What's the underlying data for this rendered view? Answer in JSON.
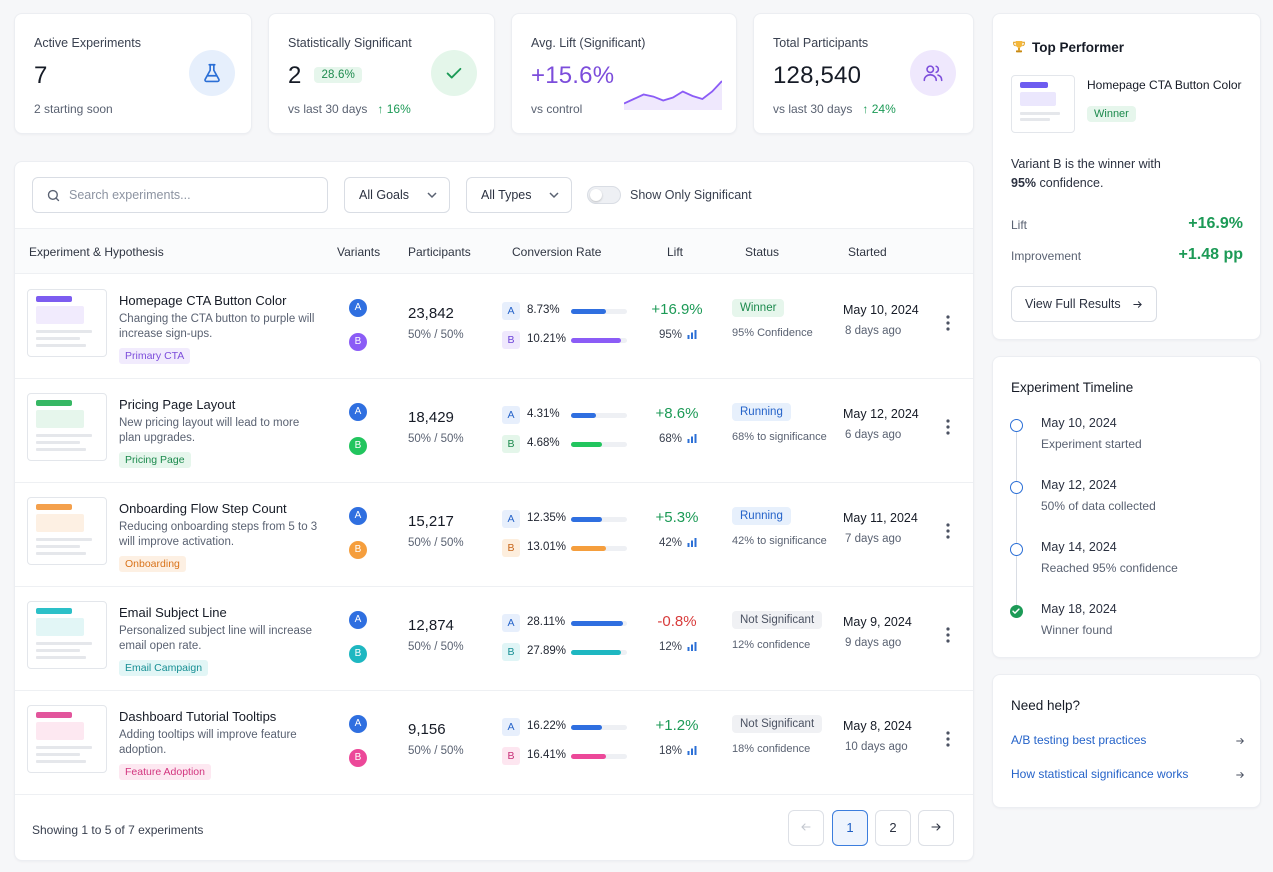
{
  "stats": [
    {
      "label": "Active Experiments",
      "value": "7",
      "sub": "2 starting soon",
      "icon": "flask-icon"
    },
    {
      "label": "Statistically Significant",
      "value": "2",
      "badge": "28.6%",
      "sub": "vs last 30 days",
      "trend": "16%",
      "icon": "check-icon"
    },
    {
      "label": "Avg. Lift (Significant)",
      "value": "+15.6%",
      "sub": "vs control",
      "sparkline": [
        0.15,
        0.3,
        0.45,
        0.38,
        0.25,
        0.35,
        0.55,
        0.4,
        0.3,
        0.55,
        0.9
      ]
    },
    {
      "label": "Total Participants",
      "value": "128,540",
      "sub": "vs last 30 days",
      "trend": "24%",
      "icon": "users-icon"
    }
  ],
  "filters": {
    "search_placeholder": "Search experiments...",
    "goals": "All Goals",
    "types": "All Types",
    "toggle_label": "Show Only Significant"
  },
  "table": {
    "headers": [
      "Experiment & Hypothesis",
      "Variants",
      "Participants",
      "Conversion Rate",
      "Lift",
      "Status",
      "Started"
    ],
    "rows": [
      {
        "name": "Homepage CTA Button Color",
        "hypothesis": "Changing the CTA button to purple will increase sign-ups.",
        "tag": "Primary CTA",
        "tag_color": "#7c4ddb",
        "tag_bg": "#f1ebfd",
        "participants": "23,842",
        "split": "50% / 50%",
        "a_rate": "8.73%",
        "b_rate": "10.21%",
        "a_fill": 0.62,
        "b_fill": 0.9,
        "b_color": "#8b5cf6",
        "b_chip_bg": "#efe8fd",
        "b_chip_fg": "#6d43d8",
        "lift": "+16.9%",
        "lift_color": "#1c9a56",
        "confidence": "95%",
        "status": "Winner",
        "status_fg": "#1c8a4d",
        "status_bg": "#e6f6ec",
        "status_note": "95% Confidence",
        "started": "May 10, 2024",
        "ago": "8 days ago",
        "accent": "#7c5cf0"
      },
      {
        "name": "Pricing Page Layout",
        "hypothesis": "New pricing layout will lead to more plan upgrades.",
        "tag": "Pricing Page",
        "tag_color": "#1c8a4d",
        "tag_bg": "#e6f6ec",
        "participants": "18,429",
        "split": "50% / 50%",
        "a_rate": "4.31%",
        "b_rate": "4.68%",
        "a_fill": 0.45,
        "b_fill": 0.55,
        "b_color": "#22c55e",
        "b_chip_bg": "#e4f6ea",
        "b_chip_fg": "#1c8a4d",
        "lift": "+8.6%",
        "lift_color": "#1c9a56",
        "confidence": "68%",
        "status": "Running",
        "status_fg": "#2563c9",
        "status_bg": "#e7f0fc",
        "status_note": "68% to significance",
        "started": "May 12, 2024",
        "ago": "6 days ago",
        "accent": "#37b764"
      },
      {
        "name": "Onboarding Flow Step Count",
        "hypothesis": "Reducing onboarding steps from 5 to 3 will improve activation.",
        "tag": "Onboarding",
        "tag_color": "#d9731a",
        "tag_bg": "#fdf0e3",
        "participants": "15,217",
        "split": "50% / 50%",
        "a_rate": "12.35%",
        "b_rate": "13.01%",
        "a_fill": 0.55,
        "b_fill": 0.62,
        "b_color": "#f59e3d",
        "b_chip_bg": "#fdeedd",
        "b_chip_fg": "#c8661a",
        "lift": "+5.3%",
        "lift_color": "#1c9a56",
        "confidence": "42%",
        "status": "Running",
        "status_fg": "#2563c9",
        "status_bg": "#e7f0fc",
        "status_note": "42% to significance",
        "started": "May 11, 2024",
        "ago": "7 days ago",
        "accent": "#f4a04c"
      },
      {
        "name": "Email Subject Line",
        "hypothesis": "Personalized subject line will increase email open rate.",
        "tag": "Email Campaign",
        "tag_color": "#178f94",
        "tag_bg": "#e2f6f6",
        "participants": "12,874",
        "split": "50% / 50%",
        "a_rate": "28.11%",
        "b_rate": "27.89%",
        "a_fill": 0.92,
        "b_fill": 0.9,
        "b_color": "#1eb7c1",
        "b_chip_bg": "#e0f5f6",
        "b_chip_fg": "#178f94",
        "lift": "-0.8%",
        "lift_color": "#d83b3b",
        "confidence": "12%",
        "status": "Not Significant",
        "status_fg": "#4b5262",
        "status_bg": "#f0f1f4",
        "status_note": "12% confidence",
        "started": "May 9, 2024",
        "ago": "9 days ago",
        "accent": "#2cc0c8"
      },
      {
        "name": "Dashboard Tutorial Tooltips",
        "hypothesis": "Adding tooltips will improve feature adoption.",
        "tag": "Feature Adoption",
        "tag_color": "#d2357f",
        "tag_bg": "#fde8f1",
        "participants": "9,156",
        "split": "50% / 50%",
        "a_rate": "16.22%",
        "b_rate": "16.41%",
        "a_fill": 0.55,
        "b_fill": 0.62,
        "b_color": "#ec4899",
        "b_chip_bg": "#fde6f0",
        "b_chip_fg": "#c82f77",
        "lift": "+1.2%",
        "lift_color": "#1c9a56",
        "confidence": "18%",
        "status": "Not Significant",
        "status_fg": "#4b5262",
        "status_bg": "#f0f1f4",
        "status_note": "18% confidence",
        "started": "May 8, 2024",
        "ago": "10 days ago",
        "accent": "#e2559c"
      }
    ]
  },
  "pagination": {
    "summary": "Showing 1 to 5 of 7 experiments",
    "pages": [
      "1",
      "2"
    ],
    "current": "1"
  },
  "top_performer": {
    "title": "Top Performer",
    "name": "Homepage CTA Button Color",
    "badge": "Winner",
    "desc_line1": "Variant B is the winner with",
    "desc_bold": "95%",
    "desc_rest": " confidence.",
    "lift_label": "Lift",
    "lift_value": "+16.9%",
    "improvement_label": "Improvement",
    "improvement_value": "+1.48 pp",
    "button": "View Full Results"
  },
  "timeline": {
    "title": "Experiment Timeline",
    "items": [
      {
        "date": "May 10, 2024",
        "event": "Experiment started",
        "done": false
      },
      {
        "date": "May 12, 2024",
        "event": "50% of data collected",
        "done": false
      },
      {
        "date": "May 14, 2024",
        "event": "Reached 95% confidence",
        "done": false
      },
      {
        "date": "May 18, 2024",
        "event": "Winner found",
        "done": true
      }
    ]
  },
  "help": {
    "title": "Need help?",
    "links": [
      "A/B testing best practices",
      "How statistical significance works"
    ]
  }
}
